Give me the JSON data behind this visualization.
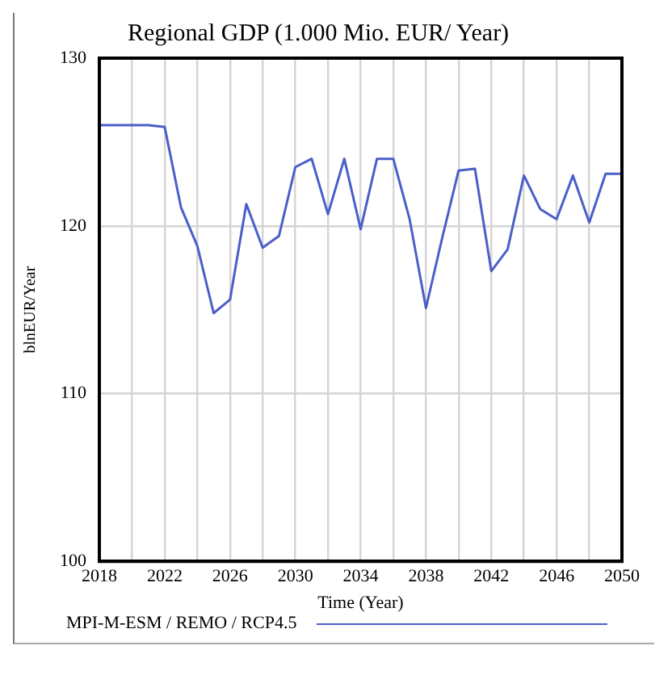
{
  "chart_data": {
    "type": "line",
    "title": "Regional GDP (1.000 Mio. EUR/ Year)",
    "xlabel": "Time (Year)",
    "ylabel": "blnEUR/Year",
    "x": [
      2018,
      2019,
      2020,
      2021,
      2022,
      2023,
      2024,
      2025,
      2026,
      2027,
      2028,
      2029,
      2030,
      2031,
      2032,
      2033,
      2034,
      2035,
      2036,
      2037,
      2038,
      2039,
      2040,
      2041,
      2042,
      2043,
      2044,
      2045,
      2046,
      2047,
      2048,
      2049,
      2050
    ],
    "series": [
      {
        "name": "MPI-M-ESM / REMO / RCP4.5",
        "color": "#4a5fc8",
        "values": [
          126,
          126,
          126,
          126,
          125.9,
          121.1,
          118.8,
          114.8,
          115.6,
          121.3,
          118.7,
          119.4,
          123.5,
          124,
          120.7,
          124,
          119.8,
          124,
          124,
          120.4,
          115.1,
          119.3,
          123.3,
          123.4,
          117.3,
          118.6,
          123,
          121,
          120.4,
          123,
          120.2,
          123.1,
          123.1
        ]
      }
    ],
    "xlim": [
      2018,
      2050
    ],
    "xticks": [
      2018,
      {
        "value": 2020,
        "label": null
      },
      2022,
      {
        "value": 2024,
        "label": null
      },
      2026,
      {
        "value": 2028,
        "label": null
      },
      2030,
      {
        "value": 2032,
        "label": null
      },
      2034,
      {
        "value": 2036,
        "label": null
      },
      2038,
      {
        "value": 2040,
        "label": null
      },
      2042,
      {
        "value": 2044,
        "label": null
      },
      2046,
      {
        "value": 2048,
        "label": null
      },
      2050
    ],
    "ylim": [
      100,
      130
    ],
    "yticks": [
      100,
      110,
      120,
      130
    ],
    "grid": true,
    "legend": "bottom",
    "marker": "none",
    "line_style": "solid"
  }
}
